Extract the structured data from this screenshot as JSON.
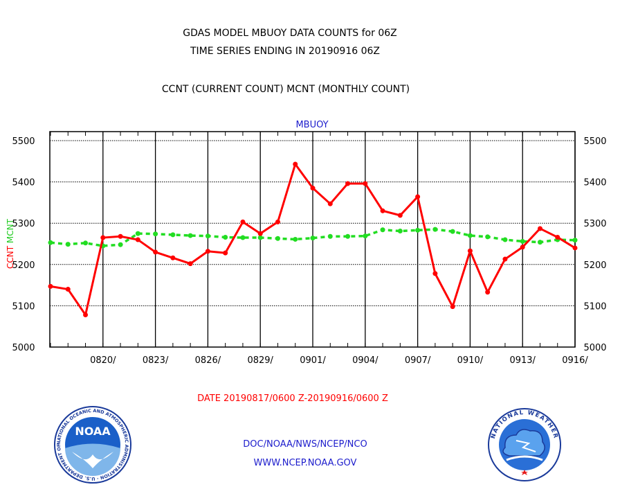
{
  "header": {
    "line1": "GDAS MODEL MBUOY DATA COUNTS for 06Z",
    "line2": "TIME SERIES ENDING IN 20190916 06Z",
    "line3": "CCNT (CURRENT COUNT) MCNT (MONTHLY COUNT)"
  },
  "footer": {
    "date_range": "DATE 20190817/0600 Z-20190916/0600 Z",
    "org": "DOC/NOAA/NWS/NCEP/NCO",
    "url": "WWW.NCEP.NOAA.GOV"
  },
  "logos": {
    "noaa_text": "NOAA",
    "noaa_ring": "NATIONAL OCEANIC AND ATMOSPHERIC ADMINISTRATION · U.S. DEPARTMENT OF COMMERCE",
    "nws_ring": "NATIONAL WEATHER SERVICE"
  },
  "colors": {
    "ccnt": "#ff0000",
    "mcnt": "#22dd22",
    "title_blue": "#1c1ccc"
  },
  "chart_data": {
    "type": "line",
    "title": "MBUOY",
    "ylabel_left": [
      "CCNT",
      "MCNT"
    ],
    "ylim": [
      5000,
      5500
    ],
    "yticks": [
      5000,
      5100,
      5200,
      5300,
      5400,
      5500
    ],
    "xlim": [
      "20190817",
      "20190916"
    ],
    "xtick_labels": [
      "0820/",
      "0823/",
      "0826/",
      "0829/",
      "0901/",
      "0904/",
      "0907/",
      "0910/",
      "0913/",
      "0916/"
    ],
    "grid": true,
    "x": [
      "0817",
      "0818",
      "0819",
      "0820",
      "0821",
      "0822",
      "0823",
      "0824",
      "0825",
      "0826",
      "0827",
      "0828",
      "0829",
      "0830",
      "0831",
      "0901",
      "0902",
      "0903",
      "0904",
      "0905",
      "0906",
      "0907",
      "0908",
      "0909",
      "0910",
      "0911",
      "0912",
      "0913",
      "0914",
      "0915",
      "0916"
    ],
    "series": [
      {
        "name": "CCNT",
        "values": [
          5147,
          5140,
          5078,
          5265,
          5268,
          5260,
          5230,
          5216,
          5202,
          5232,
          5228,
          5303,
          5275,
          5303,
          5443,
          5385,
          5347,
          5396,
          5396,
          5330,
          5319,
          5364,
          5178,
          5098,
          5233,
          5133,
          5213,
          5242,
          5287,
          5266,
          5240
        ]
      },
      {
        "name": "MCNT",
        "values": [
          5253,
          5249,
          5252,
          5245,
          5248,
          5275,
          5274,
          5272,
          5270,
          5269,
          5266,
          5265,
          5265,
          5263,
          5261,
          5264,
          5268,
          5268,
          5269,
          5284,
          5281,
          5283,
          5285,
          5280,
          5270,
          5267,
          5260,
          5256,
          5254,
          5260,
          5259
        ]
      }
    ]
  }
}
